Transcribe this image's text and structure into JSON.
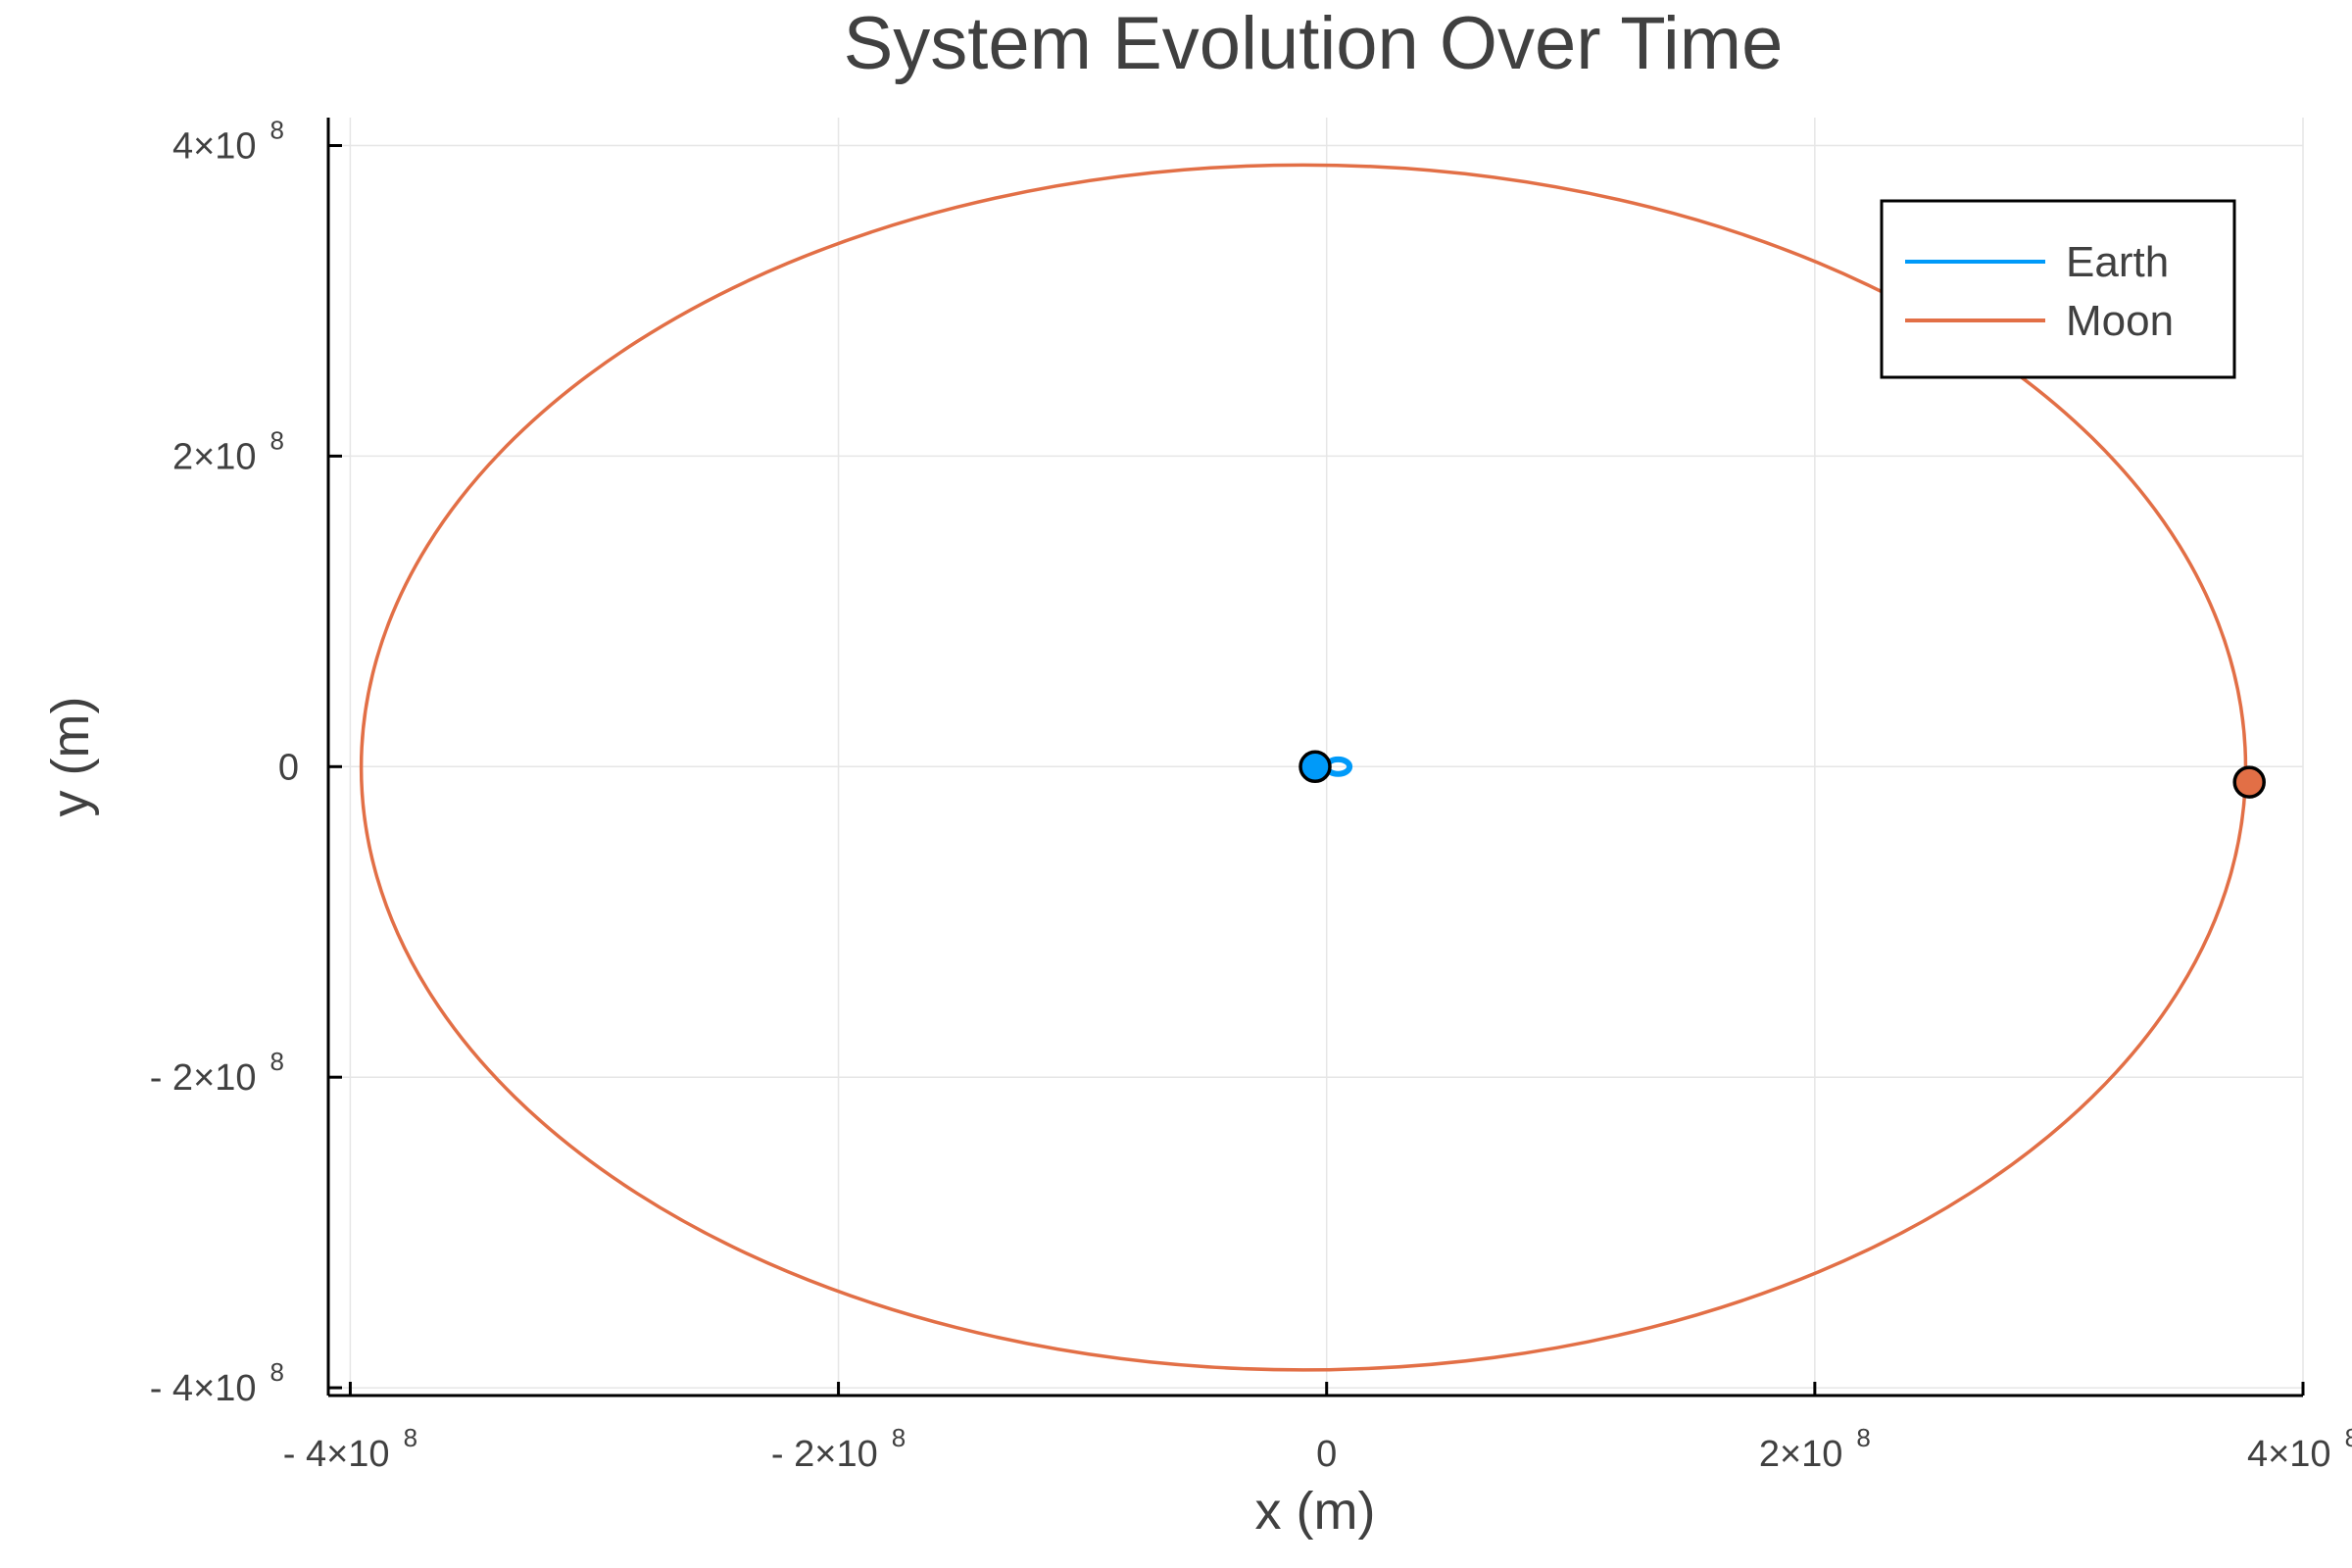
{
  "chart_data": {
    "type": "line",
    "title": "System Evolution Over Time",
    "xlabel": "x (m)",
    "ylabel": "y (m)",
    "xlim": [
      -409000000,
      400000000
    ],
    "ylim": [
      -405000000,
      418000000
    ],
    "grid": true,
    "legend_position": "top-right",
    "x_ticks": [
      {
        "value": -400000000,
        "mantissa": "- 4×10",
        "exp": "8"
      },
      {
        "value": -200000000,
        "mantissa": "- 2×10",
        "exp": "8"
      },
      {
        "value": 0,
        "mantissa": "0",
        "exp": ""
      },
      {
        "value": 200000000,
        "mantissa": "2×10",
        "exp": "8"
      },
      {
        "value": 400000000,
        "mantissa": "4×10",
        "exp": "8"
      }
    ],
    "y_ticks": [
      {
        "value": 400000000,
        "mantissa": "4×10",
        "exp": "8"
      },
      {
        "value": 200000000,
        "mantissa": "2×10",
        "exp": "8"
      },
      {
        "value": 0,
        "mantissa": "0",
        "exp": ""
      },
      {
        "value": -200000000,
        "mantissa": "- 2×10",
        "exp": "8"
      },
      {
        "value": -400000000,
        "mantissa": "- 4×10",
        "exp": "8"
      }
    ],
    "series": [
      {
        "name": "Earth",
        "color": "#009af9",
        "orbit": {
          "cx": 4700000,
          "cy": 0,
          "rx": 4700000,
          "ry": 4700000
        },
        "marker": {
          "x": -4700000,
          "y": 0
        }
      },
      {
        "name": "Moon",
        "color": "#e26f46",
        "orbit": {
          "cx": -9500000,
          "cy": -500000,
          "rx": 386000000,
          "ry": 388000000
        },
        "marker": {
          "x": 378000000,
          "y": -10000000
        }
      }
    ]
  }
}
